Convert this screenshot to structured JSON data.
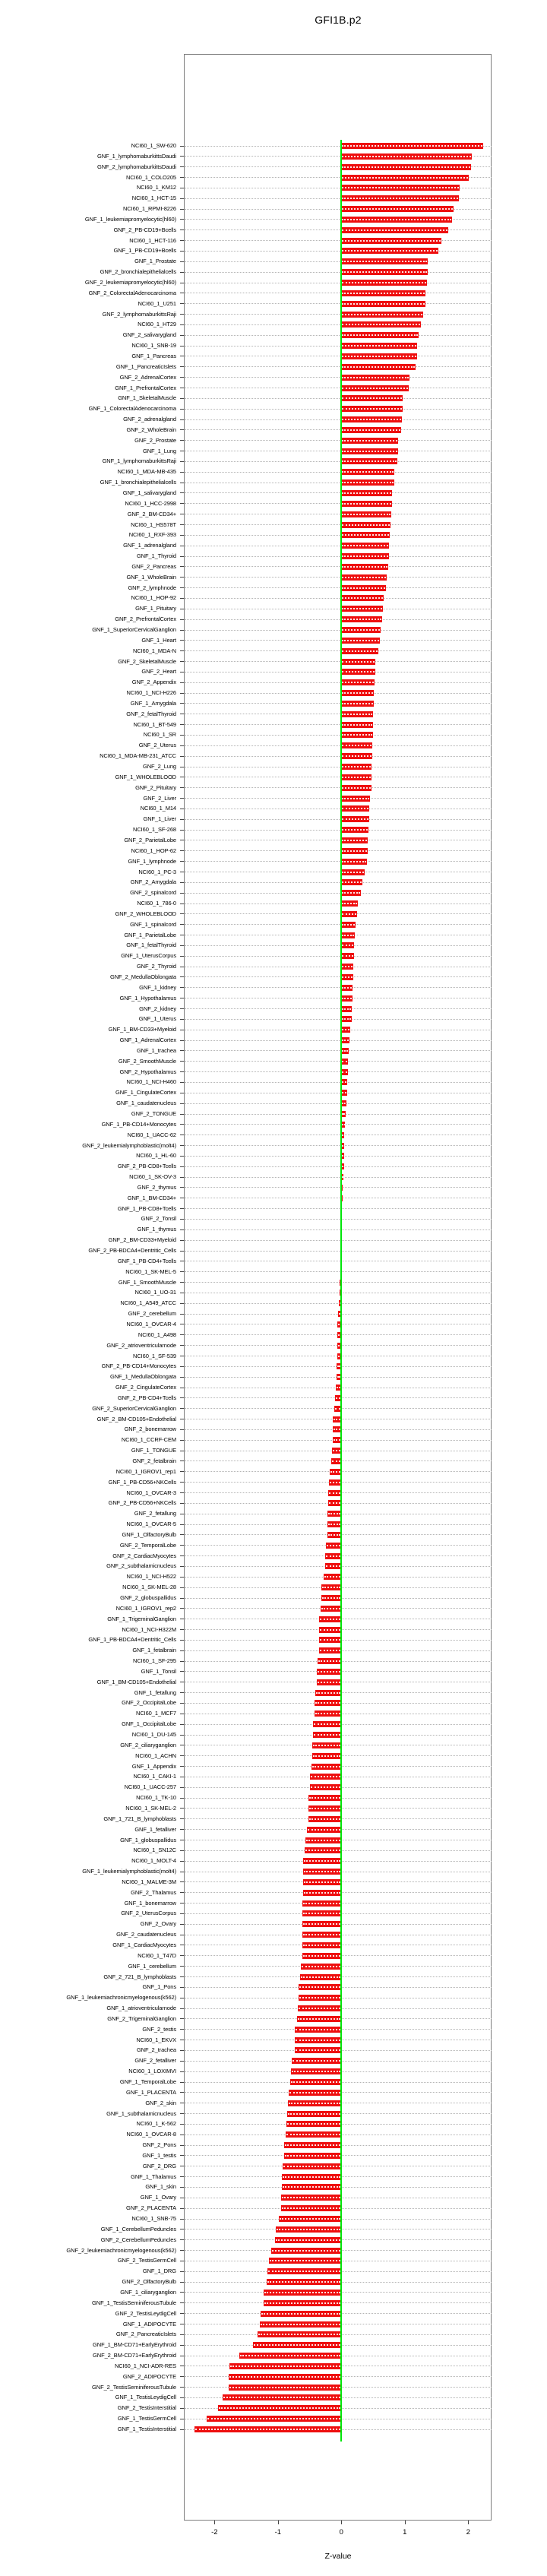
{
  "title": "GFI1B.p2",
  "chart_data": {
    "type": "bar",
    "orientation": "horizontal",
    "title": "GFI1B.p2",
    "xlabel": "Z-value",
    "x_ticks": [
      -2,
      -1,
      0,
      1,
      2
    ],
    "xlim": [
      -2.48,
      2.41
    ],
    "grid": "dotted-horizontal-per-row",
    "legend": "none",
    "bar_color": "#ee0f0f",
    "zero_line_color": "#00e609",
    "categories": [
      "NCI60_1_SW-620",
      "GNF_1_lymphomaburkittsDaudi",
      "GNF_2_lymphomaburkittsDaudi",
      "NCI60_1_COLO205",
      "NCI60_1_KM12",
      "NCI60_1_HCT-15",
      "NCI60_1_RPMI-8226",
      "GNF_1_leukemiapromyelocytic(hl60)",
      "GNF_2_PB-CD19+Bcells",
      "NCI60_1_HCT-116",
      "GNF_1_PB-CD19+Bcells",
      "GNF_1_Prostate",
      "GNF_2_bronchialepithelialcells",
      "GNF_2_leukemiapromyelocytic(hl60)",
      "GNF_2_ColorectalAdenocarcinoma",
      "NCI60_1_U251",
      "GNF_2_lymphomaburkittsRaji",
      "NCI60_1_HT29",
      "GNF_2_salivarygland",
      "NCI60_1_SNB-19",
      "GNF_1_Pancreas",
      "GNF_1_PancreaticIslets",
      "GNF_2_AdrenalCortex",
      "GNF_1_PrefrontalCortex",
      "GNF_1_SkeletalMuscle",
      "GNF_1_ColorectalAdenocarcinoma",
      "GNF_2_adrenalgland",
      "GNF_2_WholeBrain",
      "GNF_2_Prostate",
      "GNF_1_Lung",
      "GNF_1_lymphomaburkittsRaji",
      "NCI60_1_MDA-MB-435",
      "GNF_1_bronchialepithelialcells",
      "GNF_1_salivarygland",
      "NCI60_1_HCC-2998",
      "GNF_2_BM-CD34+",
      "NCI60_1_HS578T",
      "NCI60_1_RXF-393",
      "GNF_1_adrenalgland",
      "GNF_1_Thyroid",
      "GNF_2_Pancreas",
      "GNF_1_WholeBrain",
      "GNF_2_lymphnode",
      "NCI60_1_HOP-92",
      "GNF_1_Pituitary",
      "GNF_2_PrefrontalCortex",
      "GNF_1_SuperiorCervicalGanglion",
      "GNF_1_Heart",
      "NCI60_1_MDA-N",
      "GNF_2_SkeletalMuscle",
      "GNF_2_Heart",
      "GNF_2_Appendix",
      "NCI60_1_NCI-H226",
      "GNF_1_Amygdala",
      "GNF_2_fetalThyroid",
      "NCI60_1_BT-549",
      "NCI60_1_SR",
      "GNF_2_Uterus",
      "NCI60_1_MDA-MB-231_ATCC",
      "GNF_2_Lung",
      "GNF_1_WHOLEBLOOD",
      "GNF_2_Pituitary",
      "GNF_2_Liver",
      "NCI60_1_M14",
      "GNF_1_Liver",
      "NCI60_1_SF-268",
      "GNF_2_ParietalLobe",
      "NCI60_1_HOP-62",
      "GNF_1_lymphnode",
      "NCI60_1_PC-3",
      "GNF_2_Amygdala",
      "GNF_2_spinalcord",
      "NCI60_1_786-0",
      "GNF_2_WHOLEBLOOD",
      "GNF_1_spinalcord",
      "GNF_1_ParietalLobe",
      "GNF_1_fetalThyroid",
      "GNF_1_UterusCorpus",
      "GNF_2_Thyroid",
      "GNF_2_MedullaOblongata",
      "GNF_1_kidney",
      "GNF_1_Hypothalamus",
      "GNF_2_kidney",
      "GNF_1_Uterus",
      "GNF_1_BM-CD33+Myeloid",
      "GNF_1_AdrenalCortex",
      "GNF_1_trachea",
      "GNF_2_SmoothMuscle",
      "GNF_2_Hypothalamus",
      "NCI60_1_NCI-H460",
      "GNF_1_CingulateCortex",
      "GNF_1_caudatenucleus",
      "GNF_2_TONGUE",
      "GNF_1_PB-CD14+Monocytes",
      "NCI60_1_UACC-62",
      "GNF_2_leukemialymphoblastic(molt4)",
      "NCI60_1_HL-60",
      "GNF_2_PB-CD8+Tcells",
      "NCI60_1_SK-OV-3",
      "GNF_2_thymus",
      "GNF_1_BM-CD34+",
      "GNF_1_PB-CD8+Tcells",
      "GNF_2_Tonsil",
      "GNF_1_thymus",
      "GNF_2_BM-CD33+Myeloid",
      "GNF_2_PB-BDCA4+Dentritic_Cells",
      "GNF_1_PB-CD4+Tcells",
      "NCI60_1_SK-MEL-5",
      "GNF_1_SmoothMuscle",
      "NCI60_1_UO-31",
      "NCI60_1_A549_ATCC",
      "GNF_2_cerebellum",
      "NCI60_1_OVCAR-4",
      "NCI60_1_A498",
      "GNF_2_atrioventricularnode",
      "NCI60_1_SF-539",
      "GNF_2_PB-CD14+Monocytes",
      "GNF_1_MedullaOblongata",
      "GNF_2_CingulateCortex",
      "GNF_2_PB-CD4+Tcells",
      "GNF_2_SuperiorCervicalGanglion",
      "GNF_2_BM-CD105+Endothelial",
      "GNF_2_bonemarrow",
      "NCI60_1_CCRF-CEM",
      "GNF_1_TONGUE",
      "GNF_2_fetalbrain",
      "NCI60_1_IGROV1_rep1",
      "GNF_1_PB-CD56+NKCells",
      "NCI60_1_OVCAR-3",
      "GNF_2_PB-CD56+NKCells",
      "GNF_2_fetallung",
      "NCI60_1_OVCAR-5",
      "GNF_1_OlfactoryBulb",
      "GNF_2_TemporalLobe",
      "GNF_2_CardiacMyocytes",
      "GNF_2_subthalamicnucleus",
      "NCI60_1_NCI-H522",
      "NCI60_1_SK-MEL-28",
      "GNF_2_globuspallidus",
      "NCI60_1_IGROV1_rep2",
      "GNF_1_TrigeminalGanglion",
      "NCI60_1_NCI-H322M",
      "GNF_1_PB-BDCA4+Dentritic_Cells",
      "GNF_1_fetalbrain",
      "NCI60_1_SF-295",
      "GNF_1_Tonsil",
      "GNF_1_BM-CD105+Endothelial",
      "GNF_1_fetallung",
      "GNF_2_OccipitalLobe",
      "NCI60_1_MCF7",
      "GNF_1_OccipitalLobe",
      "NCI60_1_DU-145",
      "GNF_2_ciliaryganglion",
      "NCI60_1_ACHN",
      "GNF_1_Appendix",
      "NCI60_1_CAKI-1",
      "NCI60_1_UACC-257",
      "NCI60_1_TK-10",
      "NCI60_1_SK-MEL-2",
      "GNF_1_721_B_lymphoblasts",
      "GNF_1_fetalliver",
      "GNF_1_globuspallidus",
      "NCI60_1_SN12C",
      "NCI60_1_MOLT-4",
      "GNF_1_leukemialymphoblastic(molt4)",
      "NCI60_1_MALME-3M",
      "GNF_2_Thalamus",
      "GNF_1_bonemarrow",
      "GNF_2_UterusCorpus",
      "GNF_2_Ovary",
      "GNF_2_caudatenucleus",
      "GNF_1_CardiacMyocytes",
      "NCI60_1_T47D",
      "GNF_1_cerebellum",
      "GNF_2_721_B_lymphoblasts",
      "GNF_1_Pons",
      "GNF_1_leukemiachronicmyelogenous(k562)",
      "GNF_1_atrioventricularnode",
      "GNF_2_TrigeminalGanglion",
      "GNF_2_testis",
      "NCI60_1_EKVX",
      "GNF_2_trachea",
      "GNF_2_fetalliver",
      "NCI60_1_LOXIMVI",
      "GNF_1_TemporalLobe",
      "GNF_1_PLACENTA",
      "GNF_2_skin",
      "GNF_1_subthalamicnucleus",
      "NCI60_1_K-562",
      "NCI60_1_OVCAR-8",
      "GNF_2_Pons",
      "GNF_1_testis",
      "GNF_2_DRG",
      "GNF_1_Thalamus",
      "GNF_1_skin",
      "GNF_1_Ovary",
      "GNF_2_PLACENTA",
      "NCI60_1_SNB-75",
      "GNF_1_CerebellumPeduncles",
      "GNF_2_CerebellumPeduncles",
      "GNF_2_leukemiachronicmyelogenous(k562)",
      "GNF_2_TestisGermCell",
      "GNF_1_DRG",
      "GNF_2_OlfactoryBulb",
      "GNF_1_ciliaryganglion",
      "GNF_1_TestisSeminiferousTubule",
      "GNF_2_TestisLeydigCell",
      "GNF_1_ADIPOCYTE",
      "GNF_2_PancreaticIslets",
      "GNF_1_BM-CD71+EarlyErythroid",
      "GNF_2_BM-CD71+EarlyErythroid",
      "NCI60_1_NCI-ADR-RES",
      "GNF_2_ADIPOCYTE",
      "GNF_2_TestisSeminiferousTubule",
      "GNF_1_TestisLeydigCell",
      "GNF_2_TestisInterstitial",
      "GNF_1_TestisGermCell",
      "GNF_1_TestisInterstitial"
    ],
    "values": [
      2.23,
      2.06,
      2.05,
      2.01,
      1.86,
      1.85,
      1.77,
      1.74,
      1.68,
      1.58,
      1.53,
      1.36,
      1.36,
      1.35,
      1.33,
      1.33,
      1.29,
      1.25,
      1.22,
      1.19,
      1.19,
      1.17,
      1.08,
      1.06,
      0.97,
      0.97,
      0.95,
      0.94,
      0.9,
      0.89,
      0.88,
      0.84,
      0.83,
      0.8,
      0.8,
      0.79,
      0.78,
      0.76,
      0.75,
      0.75,
      0.74,
      0.72,
      0.7,
      0.67,
      0.65,
      0.64,
      0.62,
      0.61,
      0.58,
      0.54,
      0.53,
      0.52,
      0.51,
      0.51,
      0.5,
      0.5,
      0.5,
      0.49,
      0.49,
      0.48,
      0.47,
      0.47,
      0.45,
      0.44,
      0.44,
      0.43,
      0.42,
      0.42,
      0.4,
      0.37,
      0.33,
      0.31,
      0.26,
      0.25,
      0.22,
      0.21,
      0.2,
      0.2,
      0.19,
      0.19,
      0.18,
      0.18,
      0.17,
      0.16,
      0.14,
      0.13,
      0.12,
      0.11,
      0.1,
      0.09,
      0.09,
      0.08,
      0.07,
      0.06,
      0.05,
      0.04,
      0.04,
      0.04,
      0.03,
      0.02,
      0.02,
      0.01,
      0.01,
      0.0,
      0.0,
      -0.01,
      -0.02,
      -0.02,
      -0.03,
      -0.03,
      -0.04,
      -0.05,
      -0.06,
      -0.06,
      -0.06,
      -0.06,
      -0.07,
      -0.08,
      -0.09,
      -0.1,
      -0.11,
      -0.13,
      -0.13,
      -0.14,
      -0.15,
      -0.16,
      -0.18,
      -0.19,
      -0.21,
      -0.21,
      -0.22,
      -0.22,
      -0.22,
      -0.24,
      -0.25,
      -0.26,
      -0.28,
      -0.31,
      -0.32,
      -0.33,
      -0.35,
      -0.35,
      -0.35,
      -0.35,
      -0.37,
      -0.39,
      -0.39,
      -0.41,
      -0.42,
      -0.42,
      -0.45,
      -0.45,
      -0.46,
      -0.46,
      -0.47,
      -0.49,
      -0.49,
      -0.52,
      -0.52,
      -0.52,
      -0.54,
      -0.57,
      -0.58,
      -0.6,
      -0.6,
      -0.6,
      -0.6,
      -0.61,
      -0.61,
      -0.61,
      -0.61,
      -0.62,
      -0.62,
      -0.64,
      -0.65,
      -0.67,
      -0.67,
      -0.69,
      -0.7,
      -0.74,
      -0.74,
      -0.74,
      -0.78,
      -0.79,
      -0.81,
      -0.83,
      -0.84,
      -0.85,
      -0.87,
      -0.88,
      -0.9,
      -0.9,
      -0.92,
      -0.94,
      -0.94,
      -0.95,
      -0.95,
      -0.99,
      -1.03,
      -1.05,
      -1.1,
      -1.14,
      -1.17,
      -1.18,
      -1.22,
      -1.23,
      -1.27,
      -1.29,
      -1.32,
      -1.39,
      -1.61,
      -1.76,
      -1.78,
      -1.78,
      -1.87,
      -1.94,
      -2.12,
      -2.32
    ]
  }
}
